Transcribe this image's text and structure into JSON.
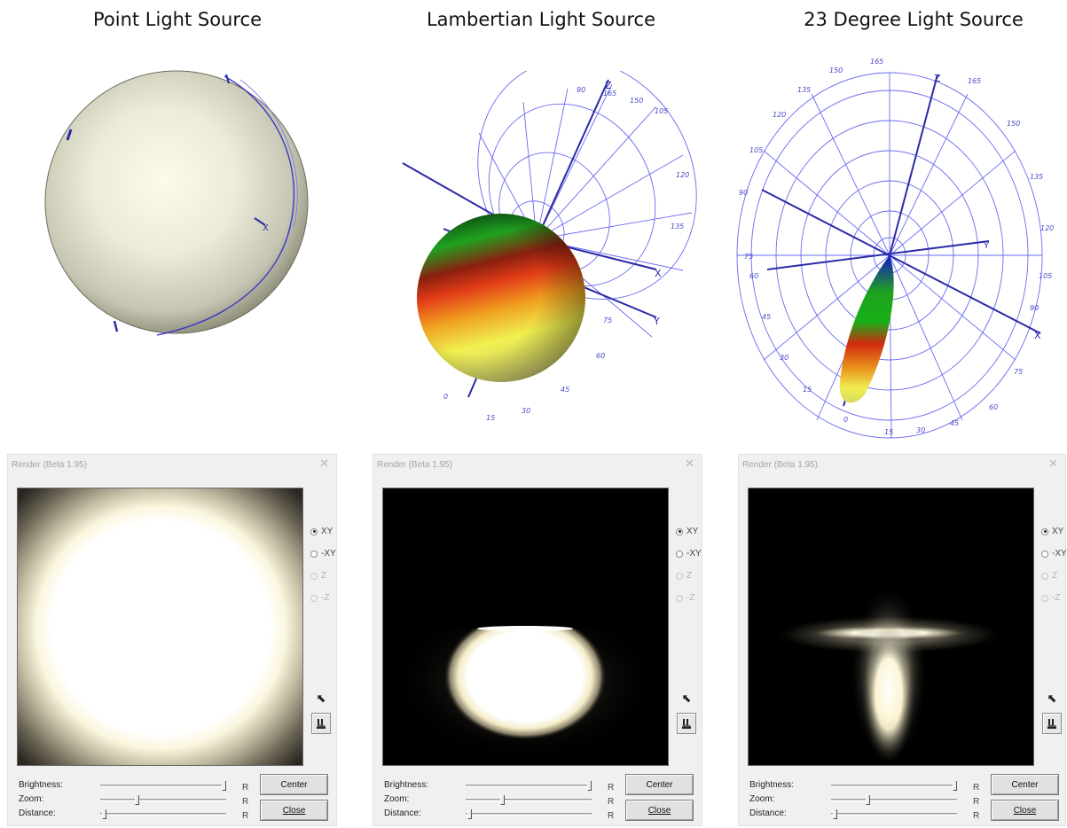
{
  "columns": [
    {
      "title": "Point Light Source",
      "window": {
        "title": "Render (Beta 1.95)",
        "radios": [
          {
            "label": "XY",
            "selected": true,
            "enabled": true
          },
          {
            "label": "-XY",
            "selected": false,
            "enabled": true
          },
          {
            "label": "Z",
            "selected": false,
            "enabled": false
          },
          {
            "label": "-Z",
            "selected": false,
            "enabled": false
          }
        ],
        "sliders": [
          {
            "label": "Brightness:",
            "value": 0.98,
            "reset": "R"
          },
          {
            "label": "Zoom:",
            "value": 0.29,
            "reset": "R"
          },
          {
            "label": "Distance:",
            "value": 0.03,
            "reset": "R"
          }
        ],
        "buttons": {
          "center": "Center",
          "close": "Close"
        }
      }
    },
    {
      "title": "Lambertian Light Source",
      "window": {
        "title": "Render (Beta 1.95)",
        "radios": [
          {
            "label": "XY",
            "selected": true,
            "enabled": true
          },
          {
            "label": "-XY",
            "selected": false,
            "enabled": true
          },
          {
            "label": "Z",
            "selected": false,
            "enabled": false
          },
          {
            "label": "-Z",
            "selected": false,
            "enabled": false
          }
        ],
        "sliders": [
          {
            "label": "Brightness:",
            "value": 0.98,
            "reset": "R"
          },
          {
            "label": "Zoom:",
            "value": 0.29,
            "reset": "R"
          },
          {
            "label": "Distance:",
            "value": 0.03,
            "reset": "R"
          }
        ],
        "buttons": {
          "center": "Center",
          "close": "Close"
        }
      }
    },
    {
      "title": "23 Degree Light Source",
      "window": {
        "title": "Render (Beta 1.95)",
        "radios": [
          {
            "label": "XY",
            "selected": true,
            "enabled": true
          },
          {
            "label": "-XY",
            "selected": false,
            "enabled": true
          },
          {
            "label": "Z",
            "selected": false,
            "enabled": false
          },
          {
            "label": "-Z",
            "selected": false,
            "enabled": false
          }
        ],
        "sliders": [
          {
            "label": "Brightness:",
            "value": 0.98,
            "reset": "R"
          },
          {
            "label": "Zoom:",
            "value": 0.29,
            "reset": "R"
          },
          {
            "label": "Distance:",
            "value": 0.03,
            "reset": "R"
          }
        ],
        "buttons": {
          "center": "Center",
          "close": "Close"
        }
      }
    }
  ],
  "axis_labels": {
    "x": "X",
    "y": "Y",
    "z": "Z"
  },
  "polar_ticks": {
    "lambertian": [
      "90",
      "105",
      "120",
      "135",
      "150",
      "165",
      "75",
      "60",
      "45",
      "30",
      "15",
      "0"
    ],
    "degree23": [
      "165",
      "150",
      "135",
      "120",
      "105",
      "90",
      "75",
      "60",
      "45",
      "30",
      "15",
      "0",
      "15",
      "30",
      "45",
      "60",
      "75",
      "90",
      "105",
      "120",
      "135",
      "150",
      "165"
    ]
  },
  "colors": {
    "polar_grid": "#5a5af0",
    "axis": "#2a2aa8",
    "render_bg": "#000000"
  }
}
